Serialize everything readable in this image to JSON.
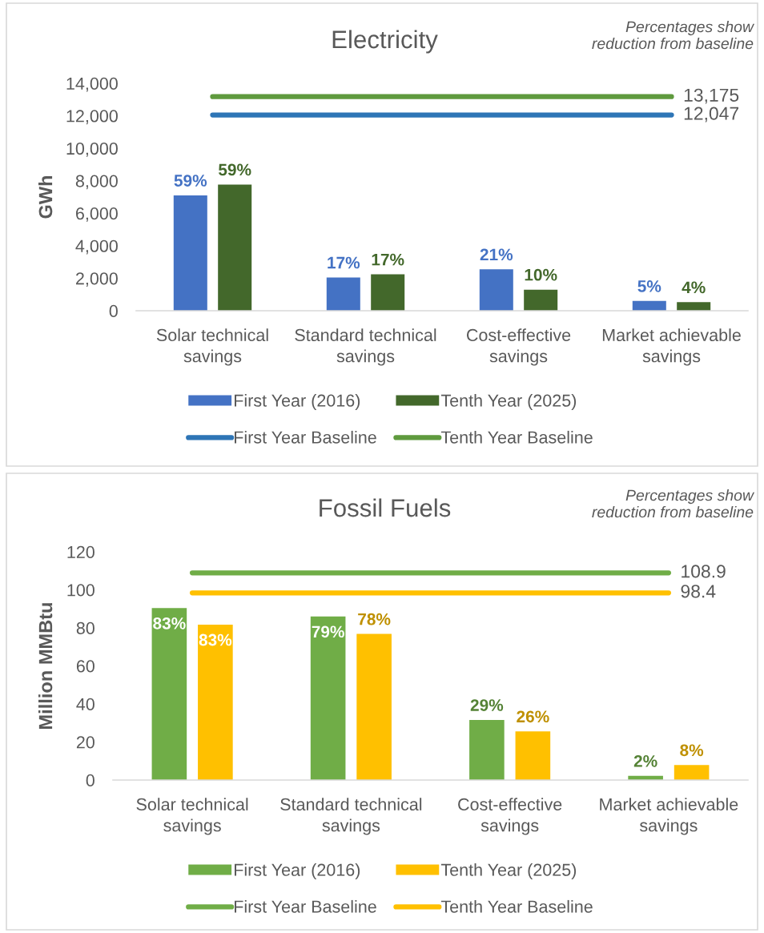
{
  "chart_data": [
    {
      "type": "bar",
      "title": "Electricity",
      "ylabel": "GWh",
      "annotations": [
        "Percentages show\nreduction from baseline",
        "59%",
        "17%",
        "21%",
        "5%",
        "59%",
        "17%",
        "10%",
        "4%"
      ],
      "categories": [
        "Solar technical\nsavings",
        "Standard technical\nsavings",
        "Cost-effective\nsavings",
        "Market achievable\nsavings"
      ],
      "ylim": [
        0,
        14000
      ],
      "yticks": [
        0,
        {
          "value": 2000,
          "label": "2,000"
        },
        {
          "value": 4000,
          "label": "4,000"
        },
        {
          "value": 6000,
          "label": "6,000"
        },
        {
          "value": 8000,
          "label": "8,000"
        },
        {
          "value": 10000,
          "label": "10,000"
        },
        {
          "value": 12000,
          "label": "12,000"
        },
        {
          "value": 14000,
          "label": "14,000"
        }
      ],
      "legend": "bottom",
      "series": [
        {
          "name": "First Year (2016)",
          "color": "#4472c4",
          "values": [
            7100,
            2050,
            2550,
            600
          ]
        },
        {
          "name": "Tenth Year (2025)",
          "color": "#43682b",
          "values": [
            7770,
            2240,
            1300,
            530
          ]
        },
        {
          "name": "First Year Baseline",
          "type": "line",
          "color": "#2e75b6",
          "values": [
            12047,
            12047,
            12047,
            12047
          ],
          "value_labels": [
            null,
            null,
            null,
            "12,047"
          ]
        },
        {
          "name": "Tenth Year Baseline",
          "type": "line",
          "color": "#5f9a3e",
          "values": [
            13175,
            13175,
            13175,
            13175
          ],
          "value_labels": [
            null,
            null,
            null,
            "13,175"
          ]
        }
      ]
    },
    {
      "type": "bar",
      "title": "Fossil Fuels",
      "ylabel": "Million MMBtu",
      "annotations": [
        "Percentages show\nreduction from baseline",
        "83%",
        "79%",
        "29%",
        "2%",
        "83%",
        "78%",
        "26%",
        "8%"
      ],
      "categories": [
        "Solar technical\nsavings",
        "Standard technical\nsavings",
        "Cost-effective\nsavings",
        "Market achievable\nsavings"
      ],
      "ylim": [
        0,
        120
      ],
      "yticks": [
        0,
        20,
        40,
        60,
        80,
        100,
        120
      ],
      "legend": "bottom",
      "series": [
        {
          "name": "First Year (2016)",
          "color": "#70ad47",
          "values": [
            90.4,
            86.0,
            31.6,
            2.2
          ]
        },
        {
          "name": "Tenth Year (2025)",
          "color": "#ffc000",
          "values": [
            81.7,
            76.8,
            25.6,
            7.9
          ]
        },
        {
          "name": "First Year Baseline",
          "type": "line",
          "color": "#70ad47",
          "values": [
            108.9,
            108.9,
            108.9,
            108.9
          ],
          "value_labels": [
            null,
            null,
            null,
            "108.9"
          ]
        },
        {
          "name": "Tenth Year Baseline",
          "type": "line",
          "color": "#ffc000",
          "values": [
            98.4,
            98.4,
            98.4,
            98.4
          ],
          "value_labels": [
            null,
            null,
            null,
            "98.4"
          ]
        }
      ]
    }
  ]
}
